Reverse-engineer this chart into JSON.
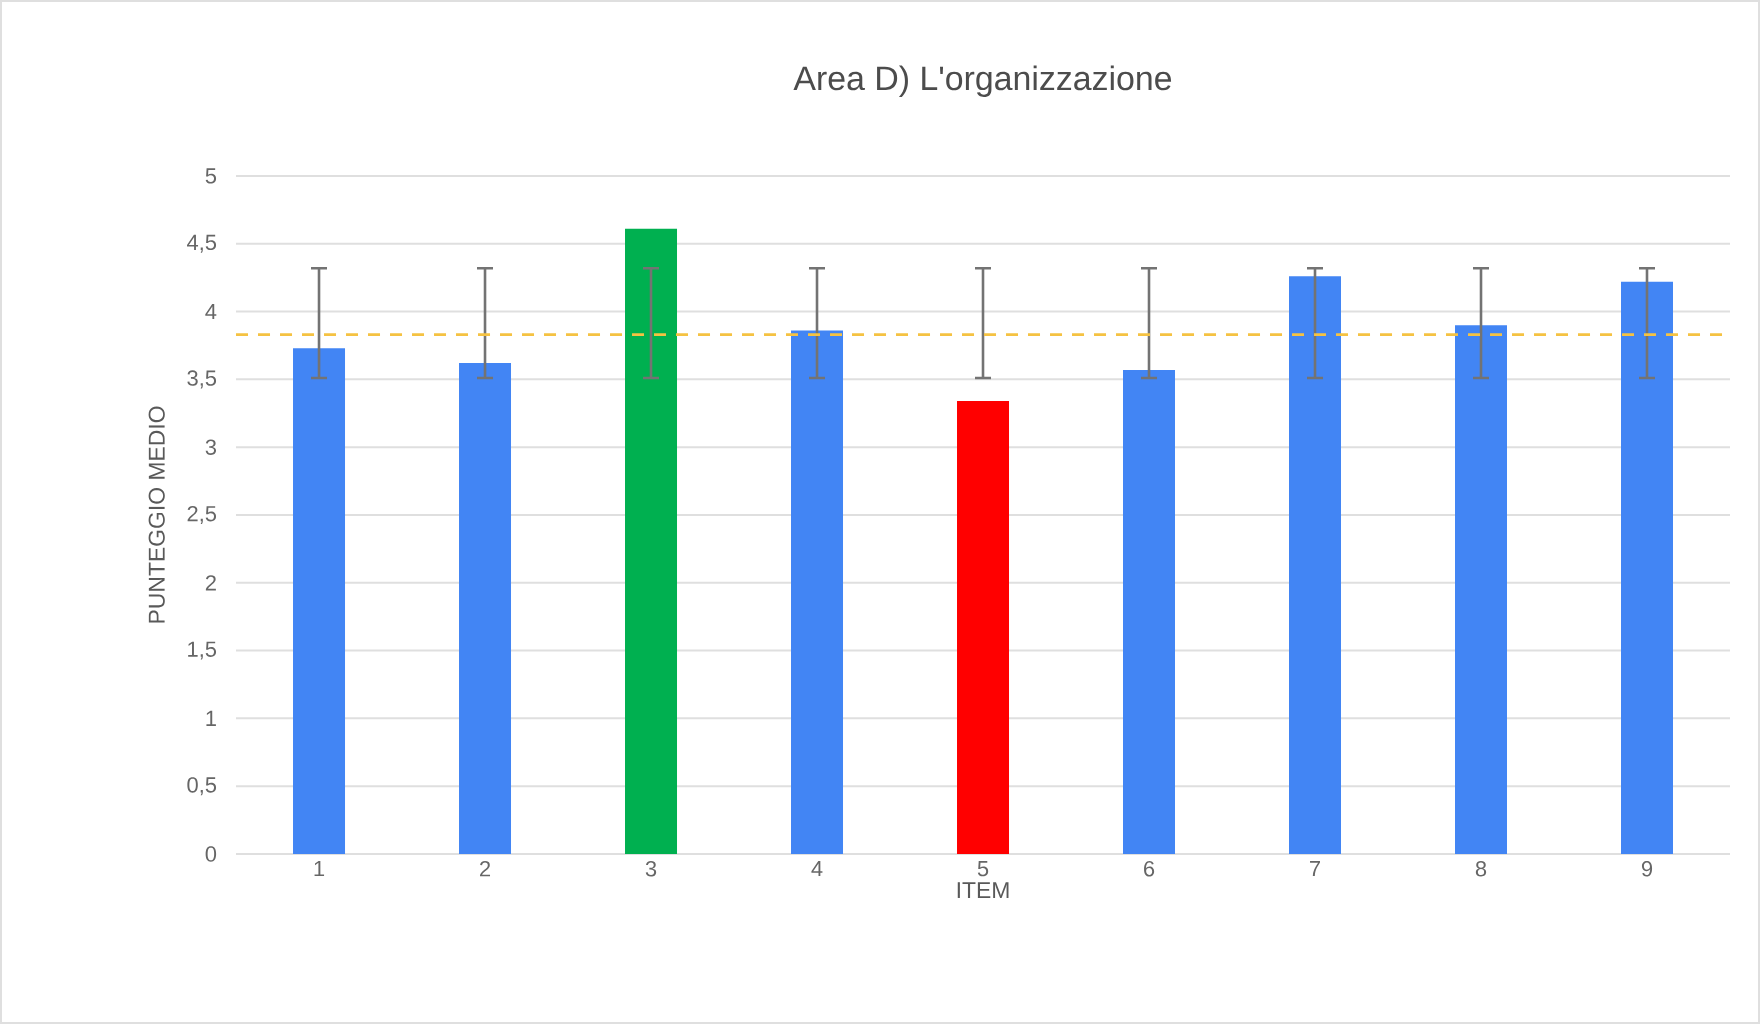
{
  "chart_data": {
    "type": "bar",
    "title": "Area D) L'organizzazione",
    "xlabel": "ITEM",
    "ylabel": "PUNTEGGIO MEDIO",
    "categories": [
      "1",
      "2",
      "3",
      "4",
      "5",
      "6",
      "7",
      "8",
      "9"
    ],
    "values": [
      3.73,
      3.62,
      4.61,
      3.86,
      3.34,
      3.57,
      4.26,
      3.9,
      4.22
    ],
    "colors": [
      "#4285f4",
      "#4285f4",
      "#00b050",
      "#4285f4",
      "#ff0000",
      "#4285f4",
      "#4285f4",
      "#4285f4",
      "#4285f4"
    ],
    "errors": [
      [
        3.51,
        4.32
      ],
      [
        3.51,
        4.32
      ],
      [
        3.51,
        4.32
      ],
      [
        3.51,
        4.32
      ],
      [
        3.51,
        4.32
      ],
      [
        3.51,
        4.32
      ],
      [
        3.51,
        4.32
      ],
      [
        3.51,
        4.32
      ],
      [
        3.51,
        4.32
      ]
    ],
    "ylim": [
      0,
      5
    ],
    "yticks": [
      0,
      {
        "value": 0.5,
        "label": "0,5"
      },
      1,
      {
        "value": 1.5,
        "label": "1,5"
      },
      2,
      {
        "value": 2.5,
        "label": "2,5"
      },
      3,
      {
        "value": 3.5,
        "label": "3,5"
      },
      4,
      {
        "value": 4.5,
        "label": "4,5"
      },
      5
    ],
    "grid": "y",
    "ref_lines": [
      {
        "axis": "y",
        "value": 3.83,
        "color": "#f5c242",
        "line_style": "dashed"
      }
    ]
  }
}
